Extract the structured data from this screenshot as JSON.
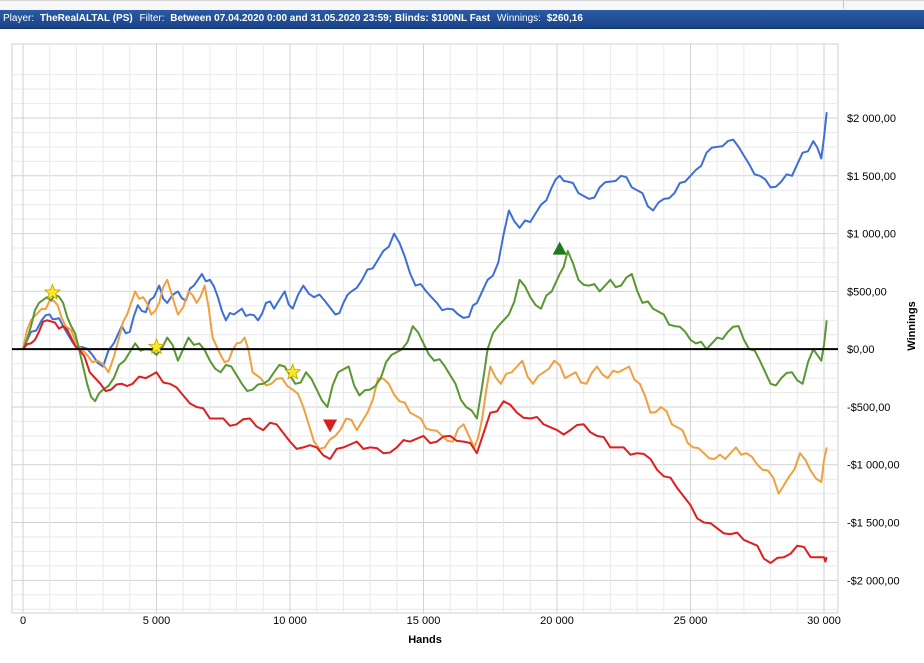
{
  "header": {
    "player_label": "Player:",
    "player_value": "TheRealALTAL (PS)",
    "filter_label": "Filter:",
    "filter_value": "Between 07.04.2020 0:00 and 31.05.2020 23:59; Blinds: $100NL Fast",
    "winnings_label": "Winnings:",
    "winnings_value": "$260,16",
    "bar_color": "#1f4a93"
  },
  "chart_data": {
    "type": "line",
    "xlabel": "Hands",
    "ylabel": "Winnings",
    "xlim": [
      0,
      30000
    ],
    "ylim": [
      -2300,
      2450
    ],
    "x_ticks": [
      0,
      5000,
      10000,
      15000,
      20000,
      25000,
      30000
    ],
    "x_tick_labels": [
      "0",
      "5 000",
      "10 000",
      "15 000",
      "20 000",
      "25 000",
      "30 000"
    ],
    "y_ticks": [
      2000,
      1500,
      1000,
      500,
      0,
      -500,
      -1000,
      -1500,
      -2000
    ],
    "y_tick_labels": [
      "$2 000,00",
      "$1 500,00",
      "$1 000,00",
      "$500,00",
      "$0,00",
      "-$500,00",
      "-$1 000,00",
      "-$1 500,00",
      "-$2 000,00"
    ],
    "y_axis_side": "right",
    "grid": true,
    "zero_line": true,
    "legend": "none",
    "series": [
      {
        "color": "#3d6fd6",
        "x": [
          0,
          300,
          700,
          1000,
          1200,
          1500,
          1800,
          2200,
          2600,
          3000,
          3400,
          3700,
          4000,
          4300,
          4600,
          4900,
          5100,
          5400,
          5800,
          6100,
          6400,
          6700,
          7000,
          7300,
          7600,
          7900,
          8200,
          8500,
          8800,
          9100,
          9400,
          9800,
          10100,
          10500,
          10900,
          11300,
          11700,
          12000,
          12300,
          12700,
          13100,
          13500,
          13900,
          14300,
          14700,
          15100,
          15500,
          15900,
          16300,
          16700,
          17000,
          17400,
          17800,
          18200,
          18600,
          19000,
          19400,
          19800,
          20100,
          20400,
          20800,
          21200,
          21600,
          22000,
          22400,
          22800,
          23200,
          23600,
          24000,
          24400,
          24800,
          25200,
          25600,
          26000,
          26400,
          26800,
          27200,
          27600,
          28000,
          28400,
          28800,
          29200,
          29600,
          29900,
          30100
        ],
        "y": [
          0,
          150,
          250,
          300,
          260,
          200,
          80,
          20,
          -50,
          -150,
          50,
          200,
          150,
          380,
          320,
          450,
          550,
          400,
          500,
          420,
          550,
          650,
          600,
          450,
          250,
          300,
          350,
          300,
          250,
          400,
          350,
          500,
          350,
          550,
          450,
          420,
          300,
          400,
          500,
          600,
          700,
          850,
          1000,
          800,
          550,
          500,
          400,
          350,
          300,
          280,
          400,
          600,
          750,
          1200,
          1050,
          1100,
          1250,
          1400,
          1500,
          1450,
          1350,
          1300,
          1400,
          1450,
          1500,
          1400,
          1350,
          1200,
          1300,
          1350,
          1450,
          1550,
          1700,
          1750,
          1800,
          1750,
          1600,
          1500,
          1400,
          1450,
          1500,
          1700,
          1800,
          1650,
          2050
        ]
      },
      {
        "color": "#f0a040",
        "x": [
          0,
          300,
          700,
          1000,
          1300,
          1600,
          2000,
          2400,
          2800,
          3200,
          3600,
          3900,
          4200,
          4500,
          4800,
          5100,
          5400,
          5800,
          6200,
          6500,
          6800,
          7100,
          7400,
          7700,
          8000,
          8300,
          8600,
          8900,
          9300,
          9700,
          10100,
          10500,
          10900,
          11300,
          11700,
          12100,
          12500,
          12900,
          13300,
          13700,
          14100,
          14500,
          14900,
          15300,
          15700,
          16100,
          16500,
          16900,
          17200,
          17500,
          17900,
          18300,
          18700,
          19100,
          19500,
          19900,
          20300,
          20700,
          21100,
          21500,
          21900,
          22300,
          22700,
          23100,
          23500,
          23900,
          24300,
          24700,
          25100,
          25500,
          25900,
          26300,
          26700,
          27100,
          27500,
          27900,
          28300,
          28700,
          29100,
          29500,
          29900,
          30100
        ],
        "y": [
          0,
          250,
          350,
          420,
          380,
          200,
          50,
          -50,
          -100,
          -200,
          100,
          300,
          500,
          450,
          300,
          400,
          600,
          300,
          500,
          400,
          550,
          100,
          -50,
          -100,
          50,
          100,
          -200,
          -250,
          -300,
          -250,
          -350,
          -500,
          -800,
          -850,
          -750,
          -600,
          -700,
          -550,
          -250,
          -300,
          -450,
          -550,
          -600,
          -700,
          -750,
          -800,
          -650,
          -850,
          -600,
          -150,
          -300,
          -200,
          -100,
          -300,
          -200,
          -100,
          -250,
          -200,
          -300,
          -150,
          -250,
          -200,
          -150,
          -300,
          -550,
          -500,
          -650,
          -700,
          -850,
          -900,
          -950,
          -950,
          -850,
          -900,
          -1000,
          -1050,
          -1250,
          -1100,
          -900,
          -1050,
          -1150,
          -850
        ]
      },
      {
        "color": "#5a9632",
        "x": [
          0,
          300,
          600,
          900,
          1200,
          1500,
          1800,
          2100,
          2400,
          2700,
          3000,
          3400,
          3800,
          4200,
          4600,
          5000,
          5400,
          5800,
          6200,
          6600,
          7000,
          7400,
          7800,
          8200,
          8600,
          9000,
          9400,
          9800,
          10200,
          10600,
          11000,
          11400,
          11800,
          12200,
          12600,
          13000,
          13400,
          13800,
          14200,
          14600,
          15000,
          15400,
          15800,
          16200,
          16600,
          17000,
          17400,
          17800,
          18200,
          18600,
          19000,
          19400,
          19800,
          20100,
          20400,
          20800,
          21200,
          21600,
          22000,
          22400,
          22800,
          23200,
          23600,
          24000,
          24400,
          24800,
          25200,
          25600,
          26000,
          26400,
          26800,
          27200,
          27600,
          28000,
          28400,
          28800,
          29200,
          29600,
          29900,
          30100
        ],
        "y": [
          0,
          200,
          400,
          450,
          470,
          400,
          200,
          0,
          -300,
          -450,
          -350,
          -250,
          -100,
          50,
          0,
          -50,
          100,
          -100,
          100,
          50,
          -100,
          -200,
          -150,
          -300,
          -350,
          -300,
          -200,
          -150,
          -300,
          -200,
          -350,
          -500,
          -200,
          -150,
          -400,
          -350,
          -250,
          -50,
          0,
          200,
          50,
          -100,
          -150,
          -300,
          -500,
          -600,
          0,
          200,
          300,
          600,
          450,
          350,
          500,
          650,
          850,
          600,
          550,
          500,
          600,
          550,
          650,
          400,
          350,
          300,
          200,
          150,
          50,
          0,
          100,
          150,
          200,
          0,
          -100,
          -300,
          -250,
          -200,
          -300,
          0,
          -100,
          250
        ]
      },
      {
        "color": "#dd1f1f",
        "x": [
          0,
          300,
          600,
          900,
          1200,
          1500,
          1800,
          2100,
          2500,
          2900,
          3300,
          3700,
          4100,
          4600,
          5000,
          5500,
          6000,
          6500,
          7000,
          7500,
          8000,
          8500,
          9000,
          9500,
          10000,
          10500,
          11000,
          11500,
          12000,
          12500,
          13000,
          13500,
          14000,
          14500,
          15000,
          15500,
          16000,
          16500,
          17000,
          17500,
          18000,
          18500,
          19000,
          19500,
          20000,
          20500,
          21000,
          21500,
          22000,
          22500,
          23000,
          23500,
          24000,
          24500,
          25000,
          25500,
          26000,
          26500,
          27000,
          27500,
          28000,
          28500,
          29000,
          29500,
          30000,
          30100
        ],
        "y": [
          0,
          50,
          150,
          250,
          230,
          200,
          100,
          0,
          -200,
          -300,
          -350,
          -300,
          -300,
          -250,
          -200,
          -300,
          -400,
          -500,
          -600,
          -600,
          -650,
          -600,
          -700,
          -650,
          -800,
          -850,
          -850,
          -950,
          -850,
          -800,
          -850,
          -900,
          -850,
          -800,
          -750,
          -800,
          -750,
          -800,
          -900,
          -550,
          -450,
          -550,
          -600,
          -650,
          -700,
          -700,
          -650,
          -750,
          -850,
          -850,
          -900,
          -950,
          -1100,
          -1200,
          -1350,
          -1500,
          -1550,
          -1600,
          -1650,
          -1700,
          -1850,
          -1800,
          -1700,
          -1800,
          -1800,
          -1800
        ]
      }
    ],
    "markers": [
      {
        "type": "star",
        "x": 1100,
        "y": 490,
        "color": "#ffe820"
      },
      {
        "type": "star",
        "x": 5000,
        "y": 20,
        "color": "#ffe820"
      },
      {
        "type": "star",
        "x": 10100,
        "y": -200,
        "color": "#ffe820"
      },
      {
        "type": "triangle-up",
        "x": 20100,
        "y": 870,
        "color": "#1e7a1e"
      },
      {
        "type": "triangle-down",
        "x": 11500,
        "y": -660,
        "color": "#d81e1e"
      }
    ]
  }
}
